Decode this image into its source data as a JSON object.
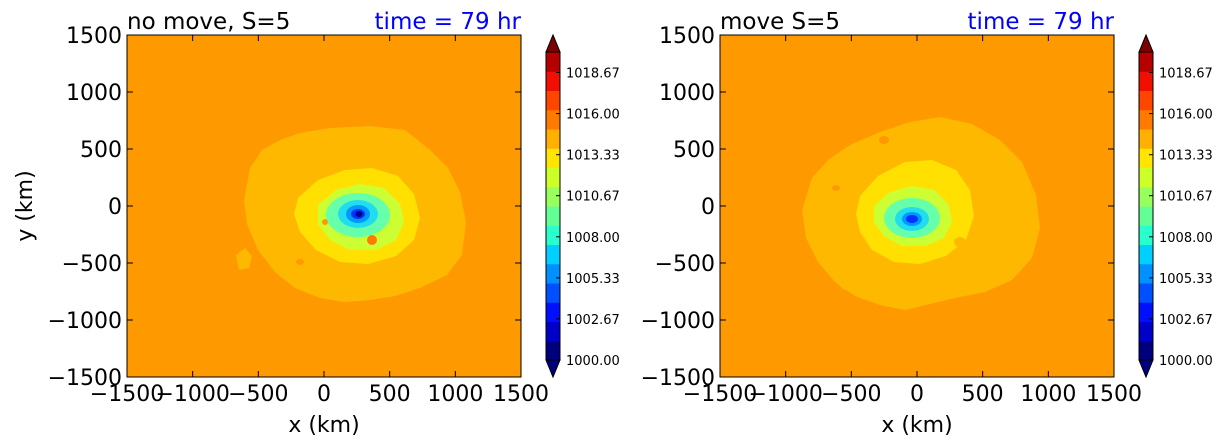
{
  "chart_data": [
    {
      "type": "contourf",
      "title": "no move, S=5",
      "time_label": "time = 79 hr",
      "xlabel": "x (km)",
      "ylabel": "y (km)",
      "xlim": [
        -1500,
        1500
      ],
      "ylim": [
        -1500,
        1500
      ],
      "xticks": [
        "−1500",
        "−1000",
        "−500",
        "0",
        "500",
        "1000",
        "1500"
      ],
      "yticks": [
        "1500",
        "1000",
        "500",
        "0",
        "−500",
        "−1000",
        "−1500"
      ],
      "colorbar_ticks": [
        "1018.67",
        "1016.00",
        "1013.33",
        "1010.67",
        "1008.00",
        "1005.33",
        "1002.67",
        "1000.00"
      ],
      "colorbar_range": [
        1000.0,
        1020.0
      ],
      "background_value": 1016.3,
      "center_x_km": 270,
      "center_y_km": -70,
      "min_value_at_center": 1000.0
    },
    {
      "type": "contourf",
      "title": "move S=5",
      "time_label": "time = 79 hr",
      "xlabel": "x (km)",
      "ylabel": "",
      "xlim": [
        -1500,
        1500
      ],
      "ylim": [
        -1500,
        1500
      ],
      "xticks": [
        "−1500",
        "−1000",
        "−500",
        "0",
        "500",
        "1000",
        "1500"
      ],
      "yticks": [
        "1500",
        "1000",
        "500",
        "0",
        "−500",
        "−1000",
        "−1500"
      ],
      "colorbar_ticks": [
        "1018.67",
        "1016.00",
        "1013.33",
        "1010.67",
        "1008.00",
        "1005.33",
        "1002.67",
        "1000.00"
      ],
      "colorbar_range": [
        1000.0,
        1020.0
      ],
      "background_value": 1016.3,
      "center_x_km": -30,
      "center_y_km": -120,
      "min_value_at_center": 1001.0
    }
  ]
}
